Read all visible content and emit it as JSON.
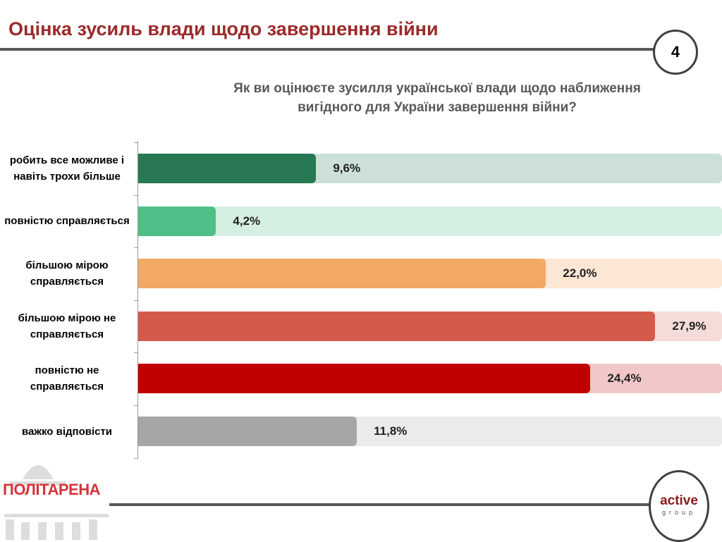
{
  "header": {
    "title": "Оцінка зусиль влади щодо завершення війни",
    "page_number": "4"
  },
  "chart_data": {
    "type": "bar",
    "orientation": "horizontal",
    "title": "Як ви оцінюєте зусилля української влади щодо наближення вигідного для України завершення війни?",
    "categories": [
      "робить все можливе і навіть трохи більше",
      "повністю справляється",
      "більшою мірою справляється",
      "більшою мірою не справляється",
      "повністю не справляється",
      "важко відповісти"
    ],
    "values": [
      9.6,
      4.2,
      22.0,
      27.9,
      24.4,
      11.8
    ],
    "value_labels": [
      "9,6%",
      "4,2%",
      "22,0%",
      "27,9%",
      "24,4%",
      "11,8%"
    ],
    "colors": [
      "#277853",
      "#4fbf88",
      "#f2a966",
      "#d45b4c",
      "#c00000",
      "#a6a6a6"
    ],
    "track_colors": [
      "#cce0d8",
      "#d5efe2",
      "#fce6d4",
      "#f5dcd9",
      "#f2c7c7",
      "#ebebeb"
    ],
    "unit": "%",
    "xlim": [
      0,
      31.5
    ]
  },
  "footer": {
    "left_logo": "ПОЛІТАРЕНА",
    "right_logo_main": "active",
    "right_logo_sub": "group"
  }
}
